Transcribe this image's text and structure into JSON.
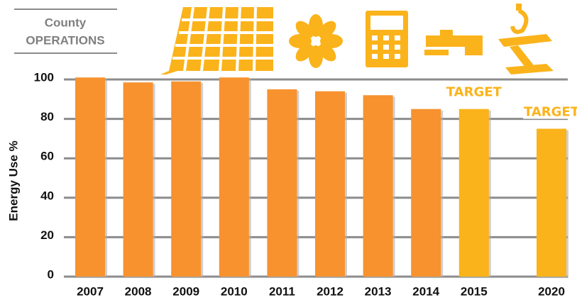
{
  "chart_data": {
    "type": "bar",
    "title": [
      "County",
      "OPERATIONS"
    ],
    "y_label": "Energy Use %",
    "categories": [
      "2007",
      "2008",
      "2009",
      "2010",
      "2011",
      "2012",
      "2013",
      "2014",
      "2015",
      "2020"
    ],
    "values": [
      101,
      98.5,
      99,
      101,
      95,
      94,
      92,
      85,
      85,
      75
    ],
    "colors": [
      "#f7922f",
      "#f7922f",
      "#f7922f",
      "#f7922f",
      "#f7922f",
      "#f7922f",
      "#f7922f",
      "#f7922f",
      "#fbb31b",
      "#fbb31b"
    ],
    "annotations": [
      {
        "text": "TARGET",
        "category": "2015"
      },
      {
        "text": "TARGET",
        "category": "2020"
      }
    ],
    "ylim": [
      0,
      100
    ],
    "yticks": [
      0,
      20,
      40,
      60,
      80,
      100
    ],
    "grid": true
  }
}
